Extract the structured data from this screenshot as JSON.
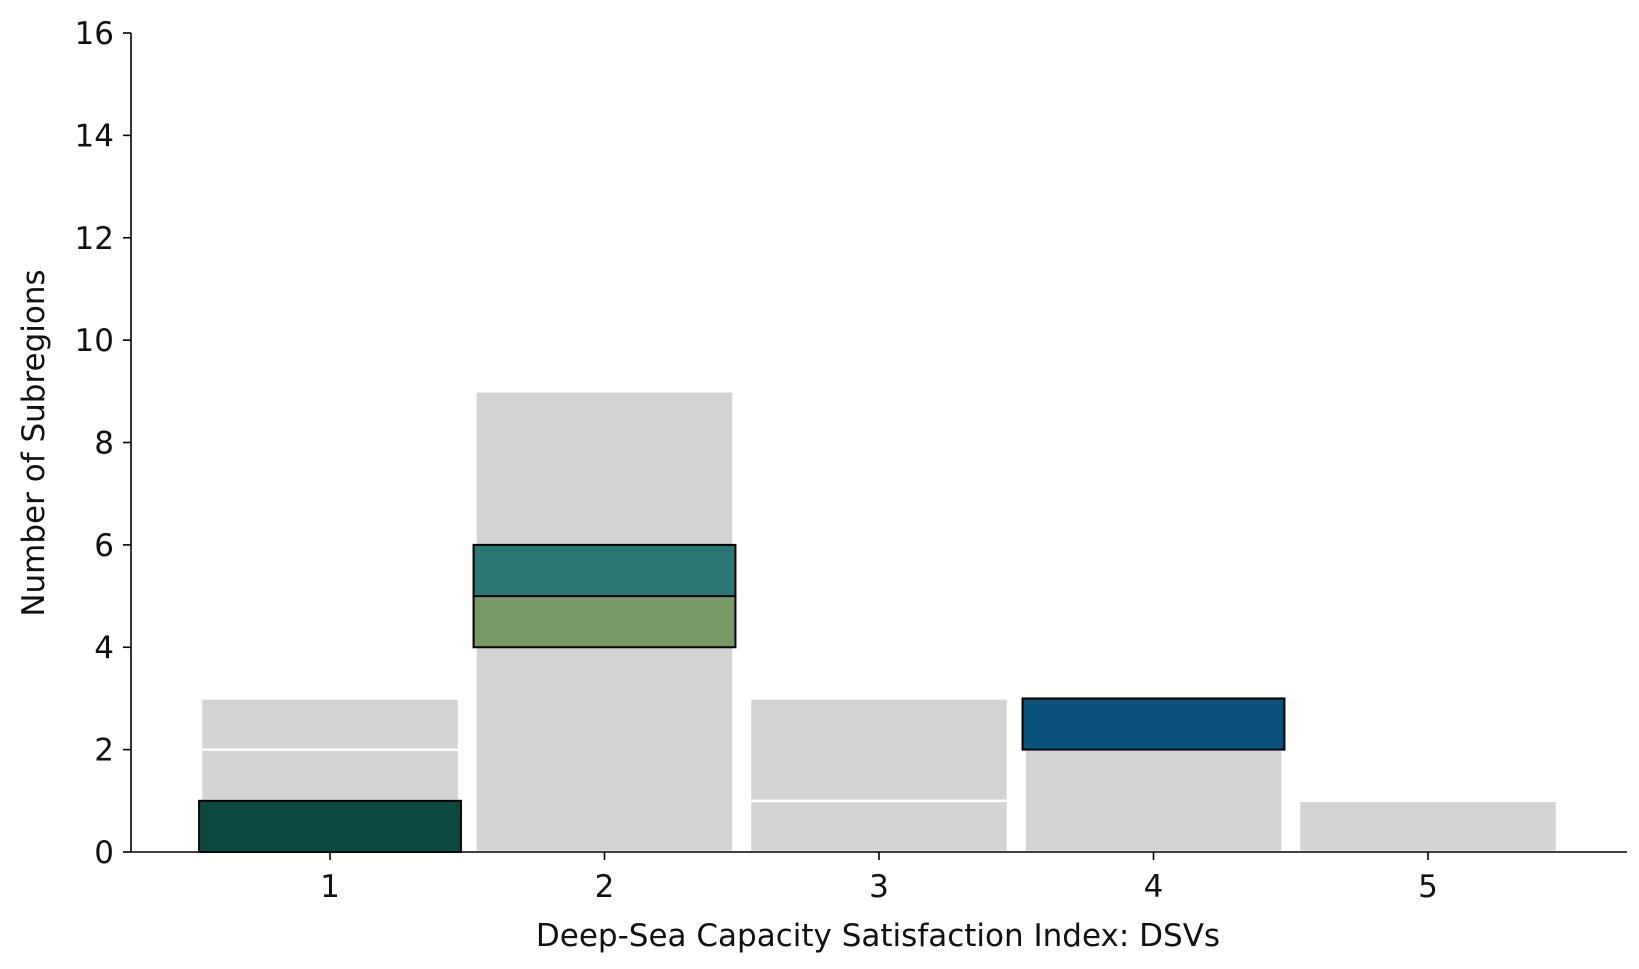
{
  "chart_data": {
    "type": "bar",
    "xlabel": "Deep-Sea Capacity Satisfaction Index: DSVs",
    "ylabel": "Number of Subregions",
    "categories": [
      "1",
      "2",
      "3",
      "4",
      "5"
    ],
    "x_ticks": [
      "1",
      "2",
      "3",
      "4",
      "5"
    ],
    "y_ticks": [
      "0",
      "2",
      "4",
      "6",
      "8",
      "10",
      "12",
      "14",
      "16"
    ],
    "ylim": [
      0,
      16
    ],
    "grid": false,
    "legend": "none",
    "background_bars": {
      "name": "",
      "color": "#d3d3d3",
      "segments": [
        {
          "x": 1,
          "y0": 0,
          "y1": 1
        },
        {
          "x": 1,
          "y0": 1,
          "y1": 2
        },
        {
          "x": 1,
          "y0": 2,
          "y1": 3
        },
        {
          "x": 2,
          "y0": 0,
          "y1": 9
        },
        {
          "x": 3,
          "y0": 0,
          "y1": 1
        },
        {
          "x": 3,
          "y0": 1,
          "y1": 3
        },
        {
          "x": 4,
          "y0": 0,
          "y1": 2
        },
        {
          "x": 4,
          "y0": 2,
          "y1": 3
        },
        {
          "x": 5,
          "y0": 0,
          "y1": 1
        }
      ]
    },
    "highlighted_segments": [
      {
        "x": 1,
        "y0": 0,
        "y1": 1,
        "color": "#0b4840"
      },
      {
        "x": 2,
        "y0": 4,
        "y1": 5,
        "color": "#779a65"
      },
      {
        "x": 2,
        "y0": 5,
        "y1": 6,
        "color": "#2a7876"
      },
      {
        "x": 4,
        "y0": 2,
        "y1": 3,
        "color": "#0a527b"
      }
    ]
  }
}
